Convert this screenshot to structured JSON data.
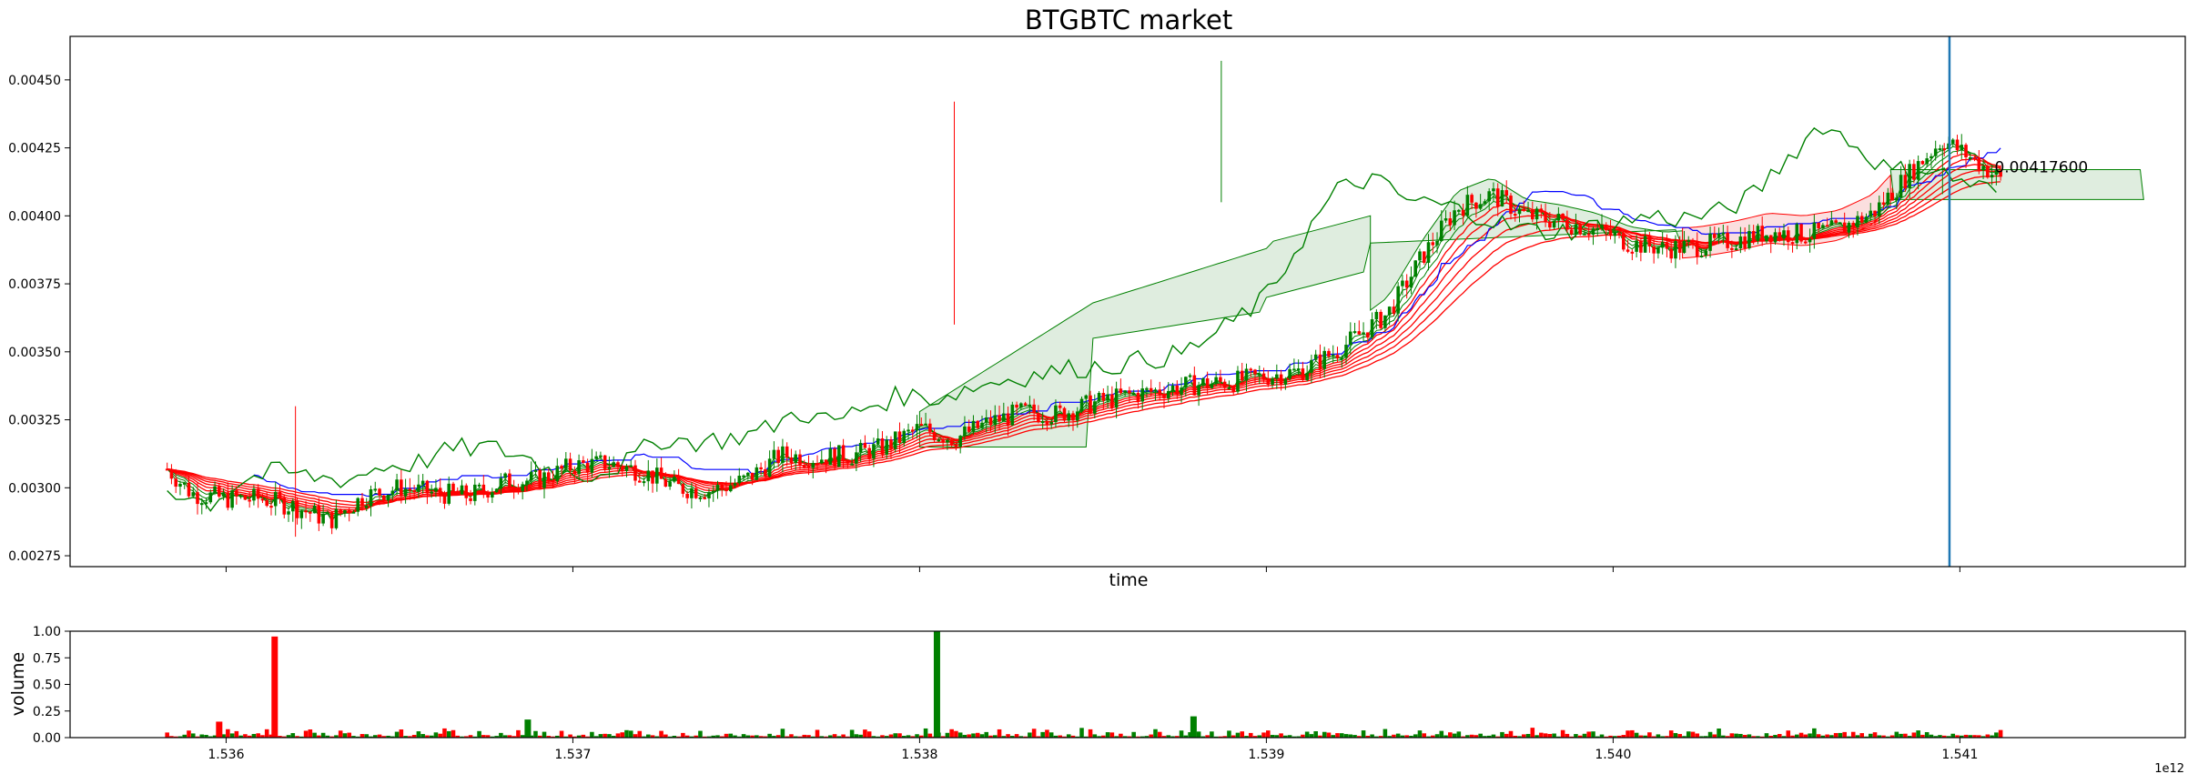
{
  "chart_data": [
    {
      "type": "candlestick",
      "title": "BTGBTC market",
      "xlabel": "time",
      "ylabel": "",
      "ylim": [
        0.00271,
        0.00466
      ],
      "xlim": [
        1.53555,
        1.54165
      ],
      "yticks": [
        0.00275,
        0.003,
        0.00325,
        0.0035,
        0.00375,
        0.004,
        0.00425,
        0.0045
      ],
      "ytick_labels": [
        "0.00275",
        "0.00300",
        "0.00325",
        "0.00350",
        "0.00375",
        "0.00400",
        "0.00425",
        "0.00450"
      ],
      "annotation": {
        "text": "0.00417600",
        "x": 1.5411,
        "y": 0.004176
      },
      "vertical_line": {
        "x": 1.54097,
        "color": "#1f77b4"
      },
      "colors": {
        "up": "#008000",
        "down": "#ff0000",
        "kijun": "#0000ff",
        "chikou": "#008000",
        "ribbon": "#ff0000",
        "cloud_up": "#dcebdc",
        "cloud_down": "#fbdcdc"
      },
      "price_path": [
        [
          1.53583,
          0.00307
        ],
        [
          1.5359,
          0.00298
        ],
        [
          1.536,
          0.00296
        ],
        [
          1.5361,
          0.00296
        ],
        [
          1.5362,
          0.00293
        ],
        [
          1.5363,
          0.00288
        ],
        [
          1.5364,
          0.00297
        ],
        [
          1.5365,
          0.003
        ],
        [
          1.5366,
          0.00298
        ],
        [
          1.5367,
          0.00297
        ],
        [
          1.5368,
          0.00302
        ],
        [
          1.5369,
          0.00303
        ],
        [
          1.537,
          0.00308
        ],
        [
          1.5371,
          0.00309
        ],
        [
          1.5372,
          0.00306
        ],
        [
          1.5373,
          0.003
        ],
        [
          1.5374,
          0.00299
        ],
        [
          1.5375,
          0.00303
        ],
        [
          1.5376,
          0.00312
        ],
        [
          1.5377,
          0.00311
        ],
        [
          1.5378,
          0.00312
        ],
        [
          1.5379,
          0.00315
        ],
        [
          1.538,
          0.00322
        ],
        [
          1.5381,
          0.00318
        ],
        [
          1.5382,
          0.00324
        ],
        [
          1.5383,
          0.00328
        ],
        [
          1.5384,
          0.00327
        ],
        [
          1.5385,
          0.00331
        ],
        [
          1.5386,
          0.00334
        ],
        [
          1.5387,
          0.00336
        ],
        [
          1.5388,
          0.00338
        ],
        [
          1.5389,
          0.00339
        ],
        [
          1.539,
          0.00341
        ],
        [
          1.5391,
          0.00343
        ],
        [
          1.5392,
          0.0035
        ],
        [
          1.53935,
          0.00364
        ],
        [
          1.53945,
          0.00385
        ],
        [
          1.53955,
          0.00403
        ],
        [
          1.53965,
          0.00408
        ],
        [
          1.53975,
          0.004
        ],
        [
          1.53985,
          0.00398
        ],
        [
          1.53995,
          0.00395
        ],
        [
          1.54005,
          0.0039
        ],
        [
          1.54015,
          0.00388
        ],
        [
          1.54025,
          0.00389
        ],
        [
          1.54035,
          0.00391
        ],
        [
          1.54045,
          0.00394
        ],
        [
          1.54055,
          0.00393
        ],
        [
          1.54065,
          0.00395
        ],
        [
          1.54075,
          0.00401
        ],
        [
          1.54085,
          0.00415
        ],
        [
          1.54095,
          0.00428
        ],
        [
          1.54105,
          0.0042
        ],
        [
          1.54115,
          0.0041
        ],
        [
          1.54125,
          0.00412
        ],
        [
          1.54135,
          0.00407
        ],
        [
          1.54145,
          0.00403
        ],
        [
          1.54155,
          0.00398
        ],
        [
          1.54165,
          0.00397
        ]
      ],
      "volume": {
        "ylabel": "volume",
        "ylim": [
          0,
          1
        ],
        "yticks": [
          0.0,
          0.25,
          0.5,
          0.75,
          1.0
        ],
        "ytick_labels": [
          "0.00",
          "0.25",
          "0.50",
          "0.75",
          "1.00"
        ],
        "xticks": [
          1.536,
          1.537,
          1.538,
          1.539,
          1.54,
          1.541
        ],
        "xtick_labels": [
          "1.536",
          "1.537",
          "1.538",
          "1.539",
          "1.540",
          "1.541"
        ],
        "offset_label": "1e12",
        "spikes": [
          {
            "x": 1.53614,
            "value": 0.95,
            "color": "#ff0000"
          },
          {
            "x": 1.53805,
            "value": 1.0,
            "color": "#008000"
          },
          {
            "x": 1.53879,
            "value": 0.2,
            "color": "#008000"
          },
          {
            "x": 1.53687,
            "value": 0.17,
            "color": "#008000"
          },
          {
            "x": 1.53598,
            "value": 0.15,
            "color": "#ff0000"
          }
        ]
      }
    }
  ]
}
